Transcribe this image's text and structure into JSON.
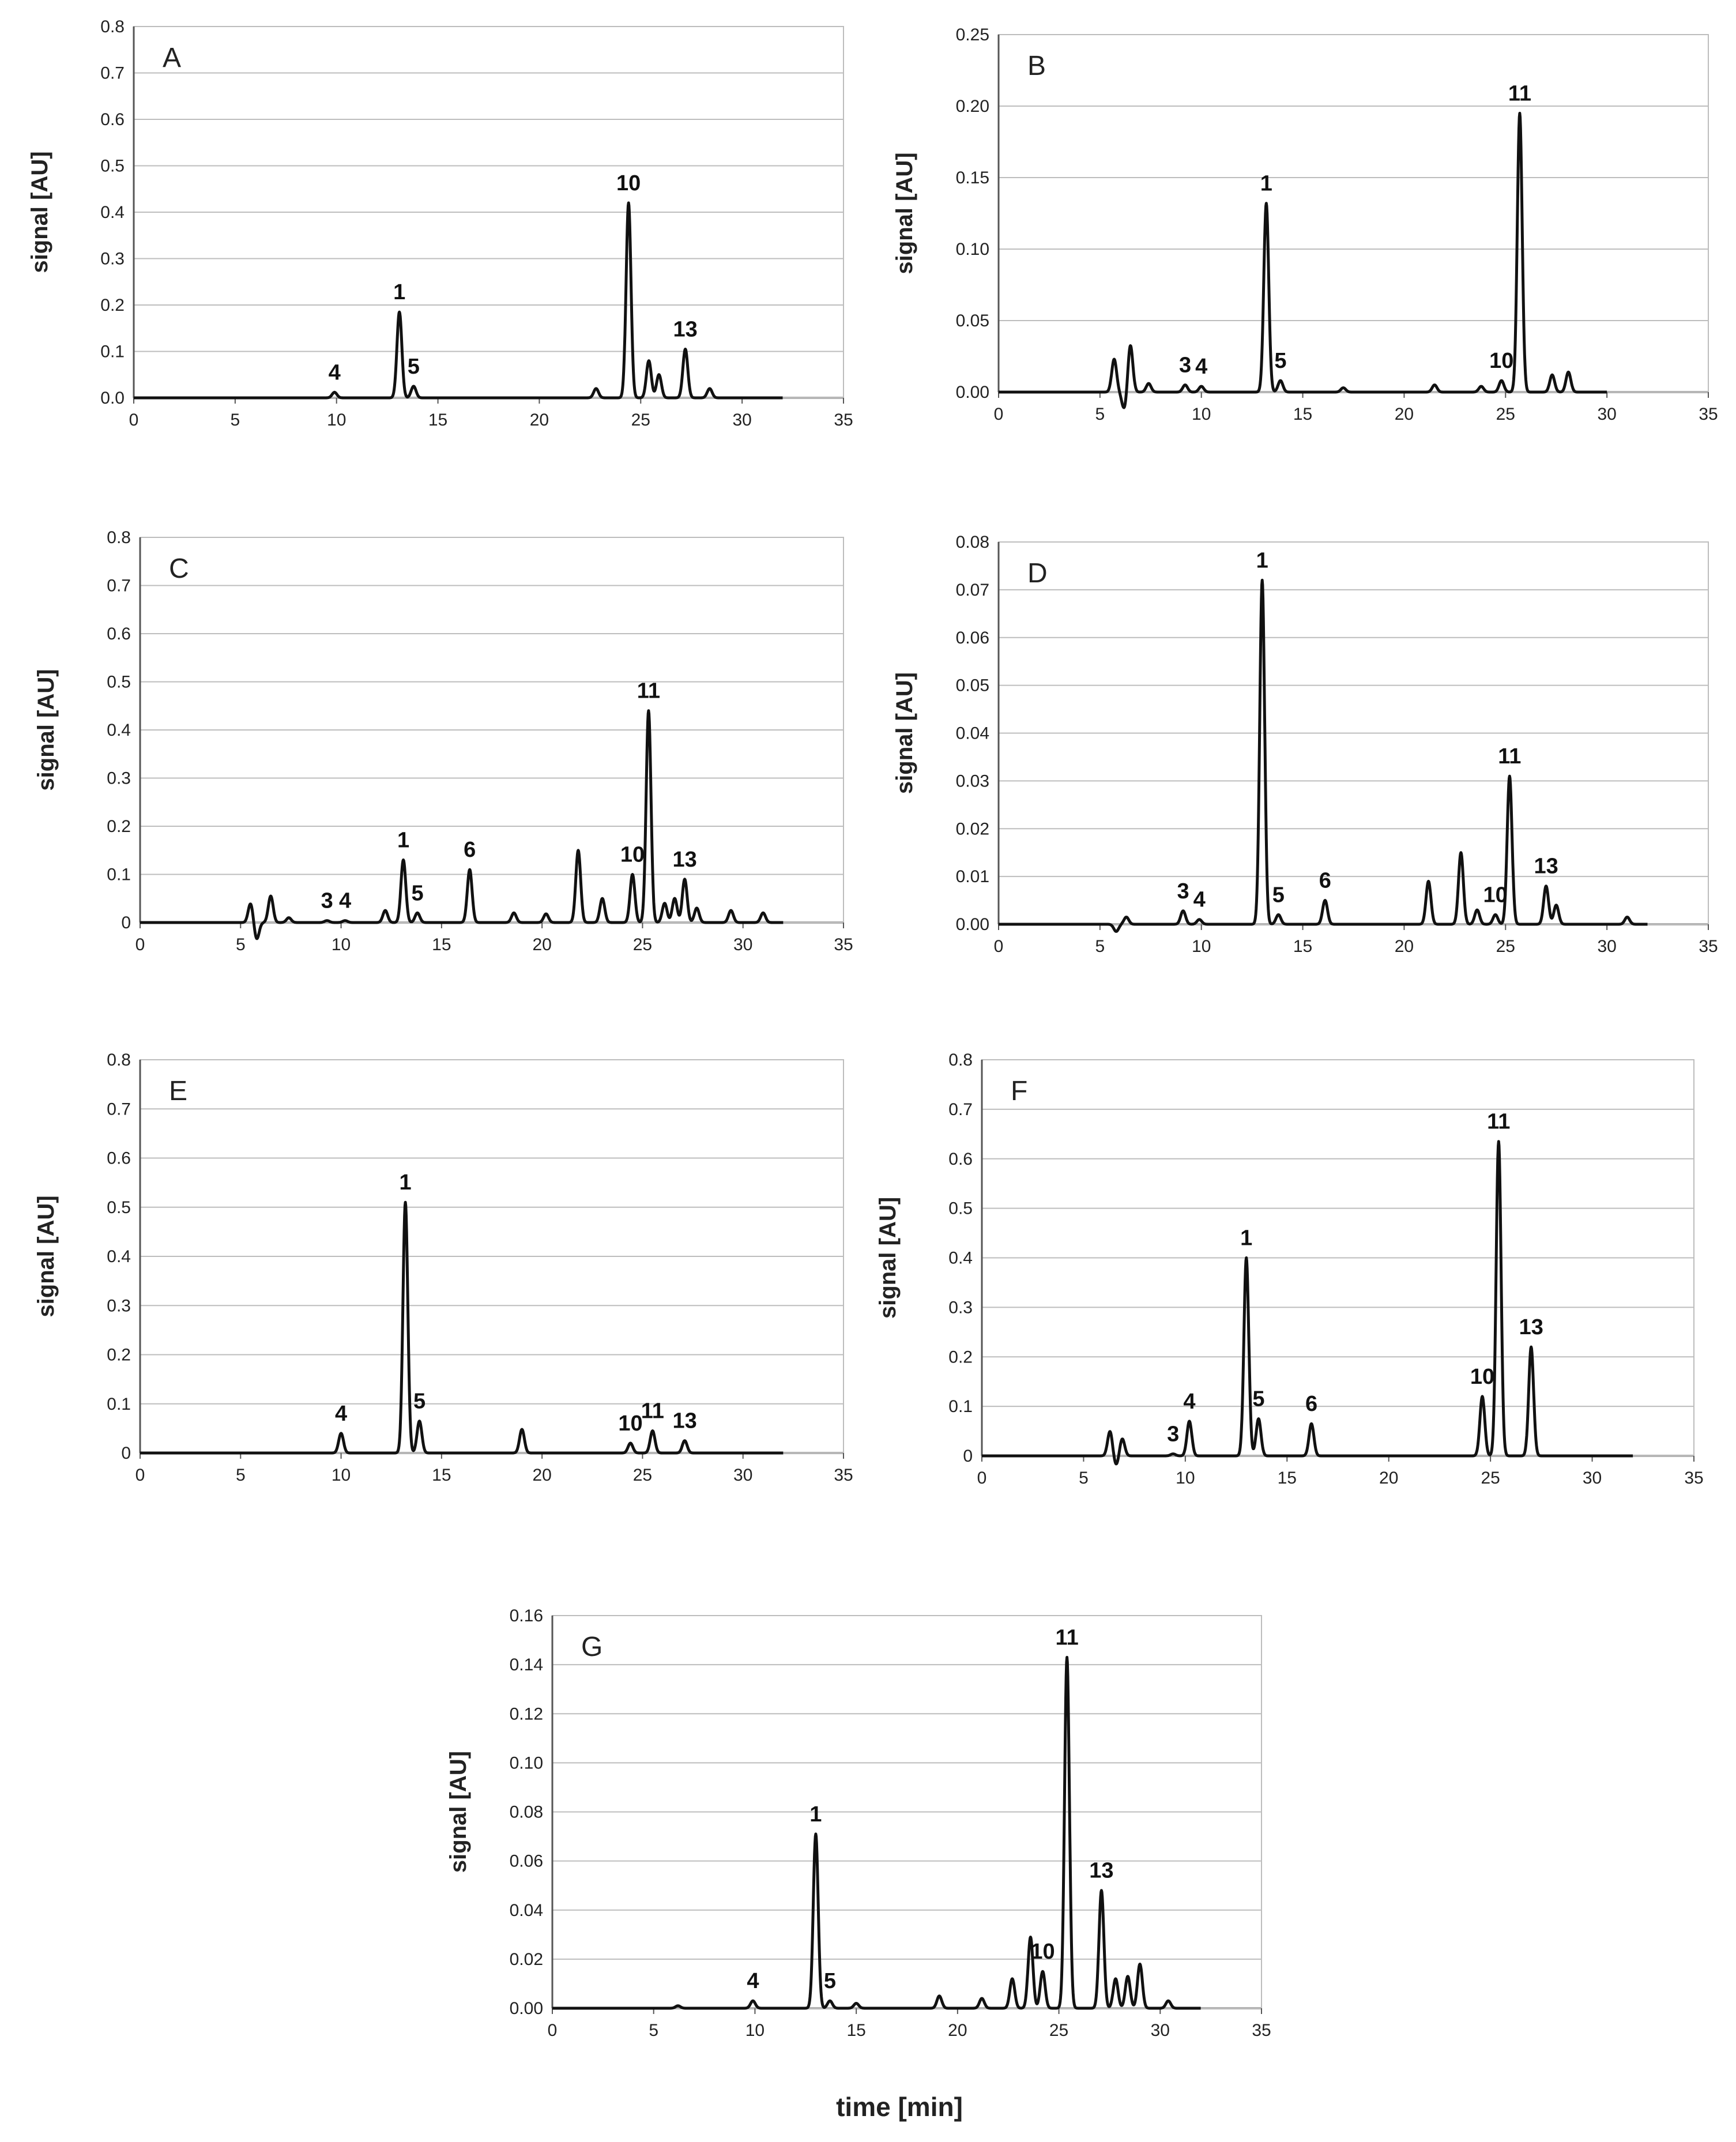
{
  "figure": {
    "xlabel": "time [min]",
    "ylabel": "signal [AU]",
    "colors": {
      "line": "#111111",
      "grid": "#bdbdbd",
      "axis": "#555555",
      "text": "#222222"
    }
  },
  "chart_data": [
    {
      "type": "line",
      "panel": "A",
      "title": "A",
      "xlim": [
        0,
        35
      ],
      "ylim": [
        0,
        0.8
      ],
      "xticks": [
        "0",
        "5",
        "10",
        "15",
        "20",
        "25",
        "30",
        "35"
      ],
      "yticks": [
        "0.0",
        "0.1",
        "0.2",
        "0.3",
        "0.4",
        "0.5",
        "0.6",
        "0.7",
        "0.8"
      ],
      "xlabel": "",
      "ylabel": "signal [AU]",
      "x_end": 32,
      "baseline": 0.0,
      "peaks": [
        {
          "x": 9.9,
          "h": 0.012,
          "label": "4"
        },
        {
          "x": 13.1,
          "h": 0.185,
          "label": "1"
        },
        {
          "x": 13.8,
          "h": 0.025,
          "label": "5"
        },
        {
          "x": 22.8,
          "h": 0.02,
          "label": ""
        },
        {
          "x": 24.4,
          "h": 0.42,
          "label": "10"
        },
        {
          "x": 25.4,
          "h": 0.08,
          "label": ""
        },
        {
          "x": 25.9,
          "h": 0.05,
          "label": ""
        },
        {
          "x": 27.2,
          "h": 0.105,
          "label": "13"
        },
        {
          "x": 28.4,
          "h": 0.02,
          "label": ""
        }
      ]
    },
    {
      "type": "line",
      "panel": "B",
      "title": "B",
      "xlim": [
        0,
        35
      ],
      "ylim": [
        0,
        0.25
      ],
      "xticks": [
        "0",
        "5",
        "10",
        "15",
        "20",
        "25",
        "30",
        "35"
      ],
      "yticks": [
        "0.00",
        "0.05",
        "0.10",
        "0.15",
        "0.20",
        "0.25"
      ],
      "xlabel": "",
      "ylabel": "signal [AU]",
      "x_end": 30,
      "baseline": 0.0,
      "peaks": [
        {
          "x": 5.7,
          "h": 0.023,
          "label": ""
        },
        {
          "x": 6.2,
          "h": -0.012,
          "label": ""
        },
        {
          "x": 6.5,
          "h": 0.033,
          "label": ""
        },
        {
          "x": 7.4,
          "h": 0.006,
          "label": ""
        },
        {
          "x": 9.2,
          "h": 0.005,
          "label": "3"
        },
        {
          "x": 10.0,
          "h": 0.004,
          "label": "4"
        },
        {
          "x": 13.2,
          "h": 0.132,
          "label": "1"
        },
        {
          "x": 13.9,
          "h": 0.008,
          "label": "5"
        },
        {
          "x": 17.0,
          "h": 0.003,
          "label": ""
        },
        {
          "x": 21.5,
          "h": 0.005,
          "label": ""
        },
        {
          "x": 23.8,
          "h": 0.004,
          "label": ""
        },
        {
          "x": 24.8,
          "h": 0.008,
          "label": "10"
        },
        {
          "x": 25.7,
          "h": 0.195,
          "label": "11"
        },
        {
          "x": 27.3,
          "h": 0.012,
          "label": ""
        },
        {
          "x": 28.1,
          "h": 0.014,
          "label": ""
        }
      ]
    },
    {
      "type": "line",
      "panel": "C",
      "title": "C",
      "xlim": [
        0,
        35
      ],
      "ylim": [
        0,
        0.8
      ],
      "xticks": [
        "0",
        "5",
        "10",
        "15",
        "20",
        "25",
        "30",
        "35"
      ],
      "yticks": [
        "0",
        "0.1",
        "0.2",
        "0.3",
        "0.4",
        "0.5",
        "0.6",
        "0.7",
        "0.8"
      ],
      "xlabel": "",
      "ylabel": "signal [AU]",
      "x_end": 32,
      "baseline": 0.0,
      "peaks": [
        {
          "x": 5.5,
          "h": 0.04,
          "label": ""
        },
        {
          "x": 5.8,
          "h": -0.035,
          "label": ""
        },
        {
          "x": 6.5,
          "h": 0.055,
          "label": ""
        },
        {
          "x": 7.4,
          "h": 0.01,
          "label": ""
        },
        {
          "x": 9.3,
          "h": 0.004,
          "label": "3"
        },
        {
          "x": 10.2,
          "h": 0.004,
          "label": "4"
        },
        {
          "x": 12.2,
          "h": 0.025,
          "label": ""
        },
        {
          "x": 13.1,
          "h": 0.13,
          "label": "1"
        },
        {
          "x": 13.8,
          "h": 0.02,
          "label": "5"
        },
        {
          "x": 16.4,
          "h": 0.11,
          "label": "6"
        },
        {
          "x": 18.6,
          "h": 0.02,
          "label": ""
        },
        {
          "x": 20.2,
          "h": 0.018,
          "label": ""
        },
        {
          "x": 21.8,
          "h": 0.15,
          "label": ""
        },
        {
          "x": 23.0,
          "h": 0.05,
          "label": ""
        },
        {
          "x": 24.5,
          "h": 0.1,
          "label": "10"
        },
        {
          "x": 25.3,
          "h": 0.44,
          "label": "11"
        },
        {
          "x": 26.1,
          "h": 0.04,
          "label": ""
        },
        {
          "x": 26.6,
          "h": 0.05,
          "label": ""
        },
        {
          "x": 27.1,
          "h": 0.09,
          "label": "13"
        },
        {
          "x": 27.7,
          "h": 0.03,
          "label": ""
        },
        {
          "x": 29.4,
          "h": 0.025,
          "label": ""
        },
        {
          "x": 31.0,
          "h": 0.02,
          "label": ""
        }
      ]
    },
    {
      "type": "line",
      "panel": "D",
      "title": "D",
      "xlim": [
        0,
        35
      ],
      "ylim": [
        0,
        0.08
      ],
      "xticks": [
        "0",
        "5",
        "10",
        "15",
        "20",
        "25",
        "30",
        "35"
      ],
      "yticks": [
        "0.00",
        "0.01",
        "0.02",
        "0.03",
        "0.04",
        "0.05",
        "0.06",
        "0.07",
        "0.08"
      ],
      "xlabel": "",
      "ylabel": "signal [AU]",
      "x_end": 32,
      "baseline": 0.0,
      "peaks": [
        {
          "x": 5.8,
          "h": -0.0015,
          "label": ""
        },
        {
          "x": 6.3,
          "h": 0.0015,
          "label": ""
        },
        {
          "x": 9.1,
          "h": 0.0028,
          "label": "3"
        },
        {
          "x": 9.9,
          "h": 0.001,
          "label": "4"
        },
        {
          "x": 13.0,
          "h": 0.072,
          "label": "1"
        },
        {
          "x": 13.8,
          "h": 0.002,
          "label": "5"
        },
        {
          "x": 16.1,
          "h": 0.005,
          "label": "6"
        },
        {
          "x": 21.2,
          "h": 0.009,
          "label": ""
        },
        {
          "x": 22.8,
          "h": 0.015,
          "label": ""
        },
        {
          "x": 23.6,
          "h": 0.003,
          "label": ""
        },
        {
          "x": 24.5,
          "h": 0.002,
          "label": "10"
        },
        {
          "x": 25.2,
          "h": 0.031,
          "label": "11"
        },
        {
          "x": 27.0,
          "h": 0.008,
          "label": "13"
        },
        {
          "x": 27.5,
          "h": 0.004,
          "label": ""
        },
        {
          "x": 31.0,
          "h": 0.0015,
          "label": ""
        }
      ]
    },
    {
      "type": "line",
      "panel": "E",
      "title": "E",
      "xlim": [
        0,
        35
      ],
      "ylim": [
        0,
        0.8
      ],
      "xticks": [
        "0",
        "5",
        "10",
        "15",
        "20",
        "25",
        "30",
        "35"
      ],
      "yticks": [
        "0",
        "0.1",
        "0.2",
        "0.3",
        "0.4",
        "0.5",
        "0.6",
        "0.7",
        "0.8"
      ],
      "xlabel": "",
      "ylabel": "signal [AU]",
      "x_end": 32,
      "baseline": 0.0,
      "peaks": [
        {
          "x": 10.0,
          "h": 0.04,
          "label": "4"
        },
        {
          "x": 13.2,
          "h": 0.51,
          "label": "1"
        },
        {
          "x": 13.9,
          "h": 0.065,
          "label": "5"
        },
        {
          "x": 19.0,
          "h": 0.048,
          "label": ""
        },
        {
          "x": 24.4,
          "h": 0.02,
          "label": "10"
        },
        {
          "x": 25.5,
          "h": 0.045,
          "label": "11"
        },
        {
          "x": 27.1,
          "h": 0.025,
          "label": "13"
        }
      ]
    },
    {
      "type": "line",
      "panel": "F",
      "title": "F",
      "xlim": [
        0,
        35
      ],
      "ylim": [
        0,
        0.8
      ],
      "xticks": [
        "0",
        "5",
        "10",
        "15",
        "20",
        "25",
        "30",
        "35"
      ],
      "yticks": [
        "0",
        "0.1",
        "0.2",
        "0.3",
        "0.4",
        "0.5",
        "0.6",
        "0.7",
        "0.8"
      ],
      "xlabel": "",
      "ylabel": "signal [AU]",
      "x_end": 32,
      "baseline": 0.0,
      "peaks": [
        {
          "x": 6.3,
          "h": 0.05,
          "label": ""
        },
        {
          "x": 6.6,
          "h": -0.02,
          "label": ""
        },
        {
          "x": 6.9,
          "h": 0.035,
          "label": ""
        },
        {
          "x": 9.4,
          "h": 0.004,
          "label": "3"
        },
        {
          "x": 10.2,
          "h": 0.07,
          "label": "4"
        },
        {
          "x": 13.0,
          "h": 0.4,
          "label": "1"
        },
        {
          "x": 13.6,
          "h": 0.075,
          "label": "5"
        },
        {
          "x": 16.2,
          "h": 0.065,
          "label": "6"
        },
        {
          "x": 24.6,
          "h": 0.12,
          "label": "10"
        },
        {
          "x": 25.4,
          "h": 0.635,
          "label": "11"
        },
        {
          "x": 27.0,
          "h": 0.22,
          "label": "13"
        }
      ]
    },
    {
      "type": "line",
      "panel": "G",
      "title": "G",
      "xlim": [
        0,
        35
      ],
      "ylim": [
        0,
        0.16
      ],
      "xticks": [
        "0",
        "5",
        "10",
        "15",
        "20",
        "25",
        "30",
        "35"
      ],
      "yticks": [
        "0.00",
        "0.02",
        "0.04",
        "0.06",
        "0.08",
        "0.10",
        "0.12",
        "0.14",
        "0.16"
      ],
      "xlabel": "time [min]",
      "ylabel": "signal [AU]",
      "x_end": 32,
      "baseline": 0.0,
      "peaks": [
        {
          "x": 6.2,
          "h": 0.001,
          "label": ""
        },
        {
          "x": 9.9,
          "h": 0.003,
          "label": "4"
        },
        {
          "x": 13.0,
          "h": 0.071,
          "label": "1"
        },
        {
          "x": 13.7,
          "h": 0.003,
          "label": "5"
        },
        {
          "x": 15.0,
          "h": 0.002,
          "label": ""
        },
        {
          "x": 19.1,
          "h": 0.005,
          "label": ""
        },
        {
          "x": 21.2,
          "h": 0.004,
          "label": ""
        },
        {
          "x": 22.7,
          "h": 0.012,
          "label": ""
        },
        {
          "x": 23.6,
          "h": 0.029,
          "label": ""
        },
        {
          "x": 24.2,
          "h": 0.015,
          "label": "10"
        },
        {
          "x": 25.4,
          "h": 0.143,
          "label": "11"
        },
        {
          "x": 27.1,
          "h": 0.048,
          "label": "13"
        },
        {
          "x": 27.8,
          "h": 0.012,
          "label": ""
        },
        {
          "x": 28.4,
          "h": 0.013,
          "label": ""
        },
        {
          "x": 29.0,
          "h": 0.018,
          "label": ""
        },
        {
          "x": 30.4,
          "h": 0.003,
          "label": ""
        }
      ]
    }
  ]
}
